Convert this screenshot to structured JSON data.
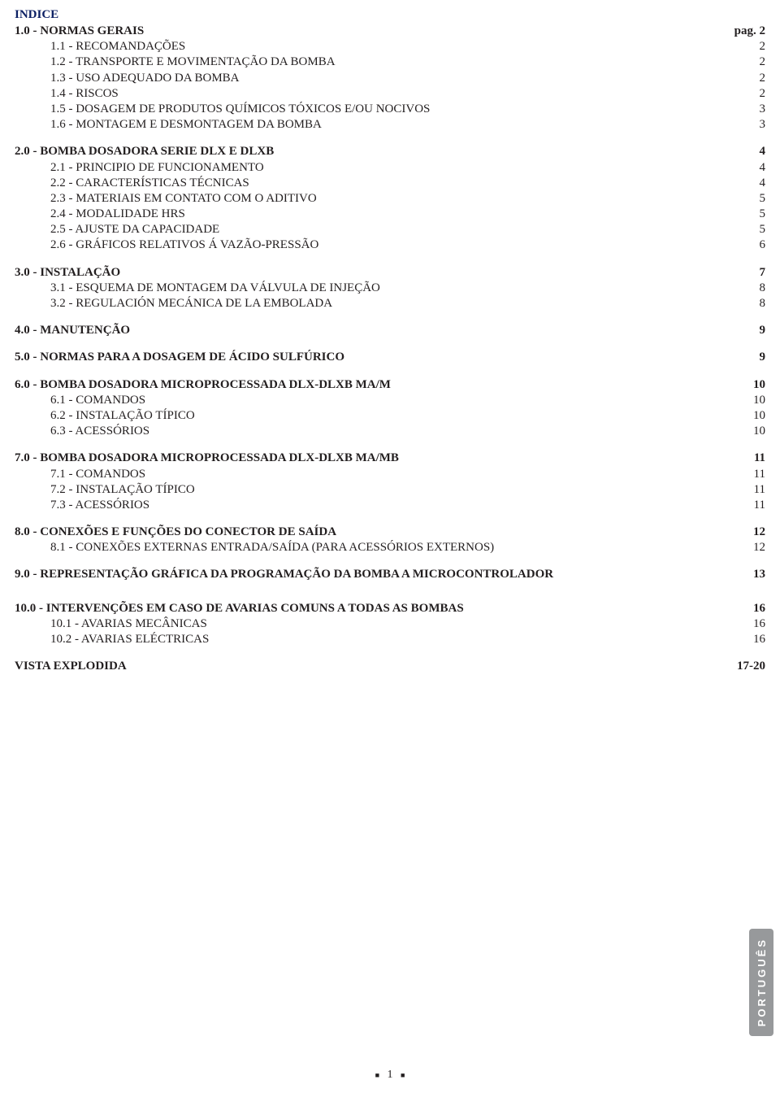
{
  "title": "INDICE",
  "pageLabelPrefix": "pag. ",
  "language_tab": "PORTUGUÊS",
  "page_number": "1",
  "colors": {
    "title_color": "#0b1f63",
    "text_color": "#231f20",
    "tab_bg": "#97999b",
    "tab_text": "#ffffff",
    "background": "#ffffff"
  },
  "groups": [
    {
      "heading": {
        "label": "1.0 - NORMAS GERAIS",
        "page": "2",
        "show_page_prefix": true
      },
      "items": [
        {
          "label": "1.1 - RECOMANDAÇÕES",
          "page": "2"
        },
        {
          "label": "1.2 - TRANSPORTE E MOVIMENTAÇÃO DA BOMBA",
          "page": "2"
        },
        {
          "label": "1.3 - USO ADEQUADO DA BOMBA",
          "page": "2"
        },
        {
          "label": "1.4 - RISCOS",
          "page": "2"
        },
        {
          "label": "1.5 - DOSAGEM DE PRODUTOS QUÍMICOS TÓXICOS E/OU NOCIVOS",
          "page": "3"
        },
        {
          "label": "1.6 - MONTAGEM E DESMONTAGEM DA BOMBA",
          "page": "3"
        }
      ]
    },
    {
      "heading": {
        "label": "2.0 - BOMBA DOSADORA SERIE DLX E DLXB",
        "page": "4"
      },
      "items": [
        {
          "label": "2.1 - PRINCIPIO DE FUNCIONAMENTO",
          "page": "4"
        },
        {
          "label": "2.2 - CARACTERÍSTICAS TÉCNICAS",
          "page": "4"
        },
        {
          "label": "2.3 - MATERIAIS EM CONTATO COM O ADITIVO",
          "page": "5"
        },
        {
          "label": "2.4 - MODALIDADE HRS",
          "page": "5"
        },
        {
          "label": "2.5 - AJUSTE DA CAPACIDADE",
          "page": "5"
        },
        {
          "label": "2.6 - GRÁFICOS RELATIVOS Á VAZÃO-PRESSÃO",
          "page": "6"
        }
      ]
    },
    {
      "heading": {
        "label": "3.0 - INSTALAÇÃO",
        "page": "7"
      },
      "items": [
        {
          "label": "3.1 - ESQUEMA DE MONTAGEM DA VÁLVULA DE INJEÇÃO",
          "page": "8"
        },
        {
          "label": "3.2 - REGULACIÓN MECÁNICA DE LA EMBOLADA",
          "page": "8"
        }
      ]
    },
    {
      "heading": {
        "label": "4.0 - MANUTENÇÃO",
        "page": "9"
      },
      "items": []
    },
    {
      "heading": {
        "label": "5.0 - NORMAS PARA A DOSAGEM DE ÁCIDO SULFÚRICO",
        "page": "9"
      },
      "items": []
    },
    {
      "heading": {
        "label": "6.0 - BOMBA DOSADORA MICROPROCESSADA DLX-DLXB MA/M",
        "page": "10"
      },
      "items": [
        {
          "label": "6.1 - COMANDOS",
          "page": "10"
        },
        {
          "label": "6.2 - INSTALAÇÃO TÍPICO",
          "page": "10"
        },
        {
          "label": "6.3 - ACESSÓRIOS",
          "page": "10"
        }
      ]
    },
    {
      "heading": {
        "label": "7.0 - BOMBA DOSADORA MICROPROCESSADA DLX-DLXB MA/MB",
        "page": "11"
      },
      "items": [
        {
          "label": "7.1 - COMANDOS",
          "page": "11"
        },
        {
          "label": "7.2 - INSTALAÇÃO TÍPICO",
          "page": "11"
        },
        {
          "label": "7.3 - ACESSÓRIOS",
          "page": "11"
        }
      ]
    },
    {
      "heading": {
        "label": "8.0 - CONEXÕES E FUNÇÕES DO CONECTOR DE SAÍDA",
        "page": "12"
      },
      "items": [
        {
          "label": "8.1 - CONEXÕES EXTERNAS ENTRADA/SAÍDA (PARA ACESSÓRIOS EXTERNOS)",
          "page": "12"
        }
      ]
    },
    {
      "heading": {
        "label": "9.0 - REPRESENTAÇÃO GRÁFICA DA PROGRAMAÇÃO DA BOMBA A MICROCONTROLADOR",
        "page": "13"
      },
      "items": [],
      "extra_margin": true
    },
    {
      "heading": {
        "label": "10.0 - INTERVENÇÕES EM CASO DE AVARIAS COMUNS A TODAS AS BOMBAS",
        "page": "16"
      },
      "items": [
        {
          "label": "10.1 - AVARIAS MECÂNICAS",
          "page": "16"
        },
        {
          "label": "10.2 - AVARIAS ELÉCTRICAS",
          "page": "16"
        }
      ]
    },
    {
      "heading": {
        "label": "VISTA EXPLODIDA",
        "page": "17-20"
      },
      "items": []
    }
  ]
}
